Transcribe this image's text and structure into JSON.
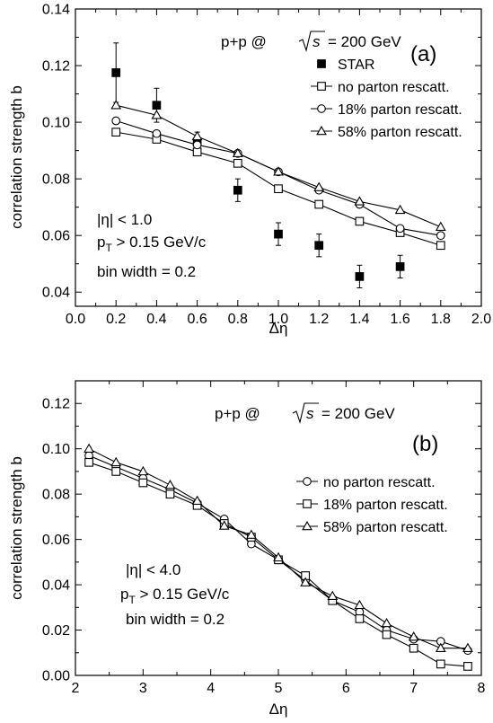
{
  "chart_data": [
    {
      "type": "line",
      "panel_label": "(a)",
      "header": "p+p @",
      "header_energy": "= 200 GeV",
      "xlabel": "Δη",
      "ylabel": "correlation strength b",
      "xlim": [
        0.0,
        2.0
      ],
      "ylim": [
        0.035,
        0.14
      ],
      "x_ticks": [
        0.0,
        0.2,
        0.4,
        0.6,
        0.8,
        1.0,
        1.2,
        1.4,
        1.6,
        1.8,
        2.0
      ],
      "y_ticks": [
        0.04,
        0.06,
        0.08,
        0.1,
        0.12,
        0.14
      ],
      "x_tick_labels": [
        "0.0",
        "0.2",
        "0.4",
        "0.6",
        "0.8",
        "1.0",
        "1.2",
        "1.4",
        "1.6",
        "1.8",
        "2.0"
      ],
      "y_tick_labels": [
        "0.04",
        "0.06",
        "0.08",
        "0.10",
        "0.12",
        "0.14"
      ],
      "annotations": [
        "|η| < 1.0",
        "p",
        "T",
        " > 0.15 GeV/c",
        "bin width = 0.2"
      ],
      "legend_position": "top-right",
      "series": [
        {
          "name": "STAR",
          "marker": "filled-square",
          "style": "points",
          "x": [
            0.2,
            0.4,
            0.6,
            0.8,
            1.0,
            1.2,
            1.4,
            1.6
          ],
          "y": [
            0.1175,
            0.106,
            0.093,
            0.076,
            0.0605,
            0.0565,
            0.0455,
            0.049
          ],
          "yerr": [
            0.0105,
            0.006,
            0.0035,
            0.004,
            0.004,
            0.004,
            0.004,
            0.004
          ]
        },
        {
          "name": "no parton rescatt.",
          "marker": "open-square",
          "style": "line",
          "x": [
            0.2,
            0.4,
            0.6,
            0.8,
            1.0,
            1.2,
            1.4,
            1.6,
            1.8
          ],
          "y": [
            0.0965,
            0.094,
            0.0895,
            0.0855,
            0.0765,
            0.071,
            0.065,
            0.061,
            0.0565
          ]
        },
        {
          "name": "18% parton rescatt.",
          "marker": "open-circle",
          "style": "line",
          "x": [
            0.2,
            0.4,
            0.6,
            0.8,
            1.0,
            1.2,
            1.4,
            1.6,
            1.8
          ],
          "y": [
            0.1005,
            0.096,
            0.092,
            0.089,
            0.0825,
            0.076,
            0.071,
            0.0625,
            0.06
          ]
        },
        {
          "name": "58% parton rescatt.",
          "marker": "open-triangle",
          "style": "line",
          "x": [
            0.2,
            0.4,
            0.6,
            0.8,
            1.0,
            1.2,
            1.4,
            1.6,
            1.8
          ],
          "y": [
            0.106,
            0.1025,
            0.095,
            0.089,
            0.0825,
            0.077,
            0.072,
            0.069,
            0.063
          ]
        }
      ]
    },
    {
      "type": "line",
      "panel_label": "(b)",
      "header": "p+p @",
      "header_energy": "= 200 GeV",
      "xlabel": "Δη",
      "ylabel": "correlation strength b",
      "xlim": [
        2,
        8
      ],
      "ylim": [
        0.0,
        0.13
      ],
      "x_ticks": [
        2,
        3,
        4,
        5,
        6,
        7,
        8
      ],
      "y_ticks": [
        0.0,
        0.02,
        0.04,
        0.06,
        0.08,
        0.1,
        0.12
      ],
      "x_tick_labels": [
        "2",
        "3",
        "4",
        "5",
        "6",
        "7",
        "8"
      ],
      "y_tick_labels": [
        "0.00",
        "0.02",
        "0.04",
        "0.06",
        "0.08",
        "0.10",
        "0.12"
      ],
      "annotations": [
        "|η| < 4.0",
        "p",
        "T",
        " > 0.15 GeV/c",
        "bin width = 0.2"
      ],
      "legend_position": "right",
      "series": [
        {
          "name": "no parton rescatt.",
          "marker": "open-circle",
          "style": "line",
          "x": [
            2.2,
            2.6,
            3.0,
            3.4,
            3.8,
            4.2,
            4.6,
            5.0,
            5.4,
            5.8,
            6.2,
            6.6,
            7.0,
            7.4,
            7.8
          ],
          "y": [
            0.097,
            0.092,
            0.087,
            0.082,
            0.076,
            0.069,
            0.058,
            0.051,
            0.042,
            0.033,
            0.028,
            0.02,
            0.016,
            0.015,
            0.011
          ]
        },
        {
          "name": "18% parton rescatt.",
          "marker": "open-square",
          "style": "line",
          "x": [
            2.2,
            2.6,
            3.0,
            3.4,
            3.8,
            4.2,
            4.6,
            5.0,
            5.4,
            5.8,
            6.2,
            6.6,
            7.0,
            7.4,
            7.8
          ],
          "y": [
            0.094,
            0.09,
            0.085,
            0.08,
            0.075,
            0.067,
            0.061,
            0.051,
            0.044,
            0.033,
            0.025,
            0.018,
            0.012,
            0.005,
            0.004
          ]
        },
        {
          "name": "58% parton rescatt.",
          "marker": "open-triangle",
          "style": "line",
          "x": [
            2.2,
            2.6,
            3.0,
            3.4,
            3.8,
            4.2,
            4.6,
            5.0,
            5.4,
            5.8,
            6.2,
            6.6,
            7.0,
            7.4,
            7.8
          ],
          "y": [
            0.1,
            0.094,
            0.09,
            0.084,
            0.077,
            0.066,
            0.062,
            0.052,
            0.041,
            0.035,
            0.031,
            0.023,
            0.017,
            0.012,
            0.012
          ]
        }
      ]
    }
  ]
}
